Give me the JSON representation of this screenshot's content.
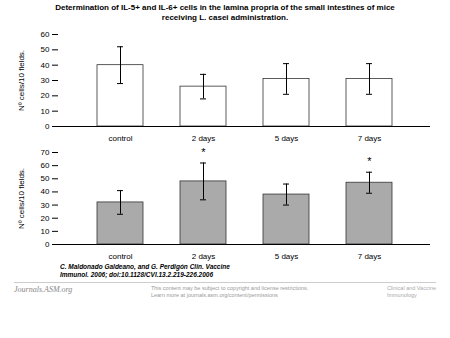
{
  "title": "Determination of IL-5+ and IL-6+ cells in the lamina propria of the small intestines of mice\nreceiving L. casei administration.",
  "chart_data": [
    {
      "type": "bar",
      "categories": [
        "control",
        "2 days",
        "5 days",
        "7 days"
      ],
      "values": [
        40,
        26,
        31,
        31
      ],
      "errors": [
        12,
        8,
        10,
        10
      ],
      "ylim": [
        0,
        60
      ],
      "yticks": [
        0,
        10,
        20,
        30,
        40,
        50,
        60
      ],
      "ylabel": "Nº cells/10 fields.",
      "color": "#ffffff",
      "grid": false
    },
    {
      "type": "bar",
      "categories": [
        "control",
        "2 days",
        "5 days",
        "7 days"
      ],
      "values": [
        32,
        48,
        38,
        47
      ],
      "errors": [
        9,
        14,
        8,
        8
      ],
      "ylim": [
        0,
        70
      ],
      "yticks": [
        0,
        10,
        20,
        30,
        40,
        50,
        60,
        70
      ],
      "ylabel": "Nº cells/10 fields.",
      "color": "#aaaaaa",
      "grid": false,
      "annotations": [
        {
          "category": "2 days",
          "text": "*"
        },
        {
          "category": "7 days",
          "text": "*"
        }
      ]
    }
  ],
  "annotations": [
    "C. Maldonado Galdeano, and G. Perdigón Clin. Vaccine\nImmunol. 2006; doi:10.1128/CVI.13.2.219-226.2006",
    "Journals.ASM.org",
    "This content may be subject to copyright and license restrictions.\nLearn more at journals.asm.org/content/permissions",
    "Clinical and Vaccine\nImmunology"
  ]
}
